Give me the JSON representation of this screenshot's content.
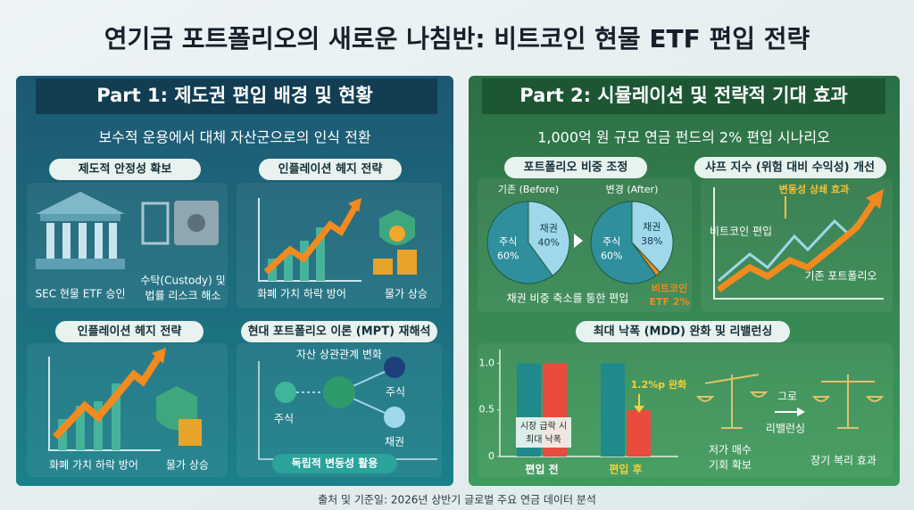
{
  "title": "연기금 포트폴리오의 새로운 나침반: 비트코인 현물 ETF 편입 전략",
  "part1": {
    "header": "Part 1: 제도권 편입 배경 및 현황",
    "subtitle": "보수적 운용에서 대체 자산군으로의 인식 전환",
    "cards": [
      {
        "label": "제도적 안정성 확보",
        "captions": [
          "SEC 현물 ETF 승인",
          "수탁(Custody) 및",
          "법률 리스크 해소"
        ]
      },
      {
        "label": "인플레이션 헤지 전략",
        "captions": [
          "화폐 가치 하락 방어",
          "물가 상승"
        ]
      },
      {
        "label": "인플레이션 헤지 전략",
        "captions": [
          "화폐 가치 하락 방어",
          "물가 상승"
        ]
      },
      {
        "label": "현대 포트폴리오 이론 (MPT) 재해석",
        "captions": [
          "자산 상관관계 변화",
          "주식",
          "주식",
          "채권",
          "독립적 변동성 활용"
        ]
      }
    ]
  },
  "part2": {
    "header": "Part 2: 시뮬레이션 및 전략적 기대 효과",
    "subtitle": "1,000억 원 규모 연금 펀드의 2% 편입 시나리오",
    "allocation": {
      "label": "포트폴리오 비중 조정",
      "caption": "채권 비중 축소를 통한 편입",
      "pies": [
        {
          "title": "기존 (Before)",
          "names": [
            "주식",
            "채권"
          ],
          "values": [
            60,
            40
          ],
          "value_labels": [
            "60%",
            "40%"
          ],
          "colors": [
            "#2f8f9d",
            "#9fd8ea"
          ]
        },
        {
          "title": "변경 (After)",
          "names": [
            "주식",
            "채권",
            "비트코인"
          ],
          "values": [
            60,
            38,
            2
          ],
          "value_labels": [
            "60%",
            "38%",
            "ETF 2%"
          ],
          "colors": [
            "#2f8f9d",
            "#9fd8ea",
            "#f08a1c"
          ]
        }
      ]
    },
    "sharpe": {
      "label": "샤프 지수 (위험 대비 수익성) 개선",
      "annotations": [
        "변동성 상쇄 효과",
        "비트코인 편입",
        "기존 포트폴리오"
      ]
    },
    "mdd": {
      "label": "최대 낙폭 (MDD) 완화 및 리밸런싱",
      "ylim": [
        0,
        1.1
      ],
      "yticks": [
        {
          "value": 1,
          "label": "1.0"
        },
        0.5,
        0
      ],
      "categories": [
        "편입 전",
        "편입 후"
      ],
      "series": [
        {
          "color": "#1f8a8c",
          "values": [
            1,
            1
          ]
        },
        {
          "color": "#e94b3c",
          "values": [
            1,
            0.5
          ]
        }
      ],
      "annotations": [
        "시장 급락 시",
        "최대 낙폭",
        "1.2%p 완화"
      ],
      "rebalancing": [
        "그로",
        "리밸런싱",
        "저가 매수",
        "기회 확보",
        "장기 복리 효과"
      ]
    }
  },
  "footer": "출처 및 기준일: 2026년 상반기 글로벌 주요 연금 데이터 분석"
}
